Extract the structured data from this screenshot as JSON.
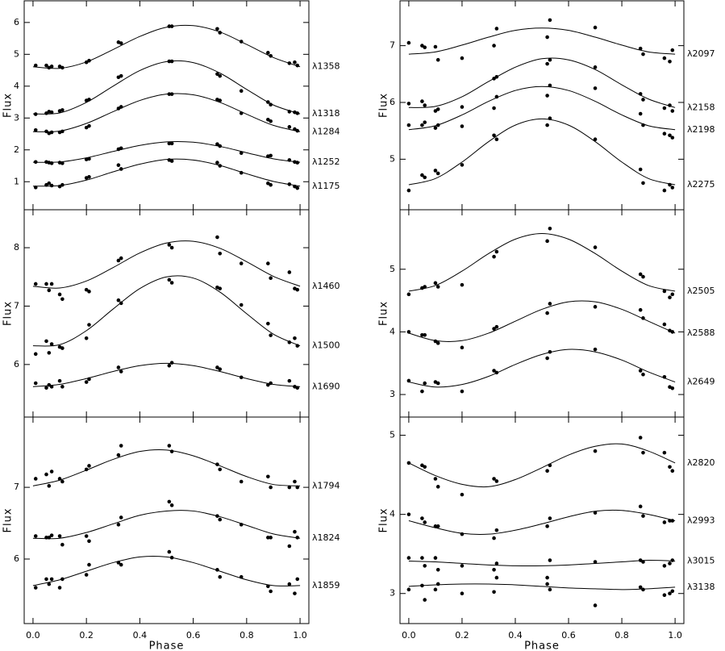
{
  "chart_data": [
    {
      "type": "scatter",
      "ylabel": "Flux",
      "x": [
        0.01,
        0.05,
        0.06,
        0.07,
        0.1,
        0.11,
        0.2,
        0.21,
        0.32,
        0.33,
        0.51,
        0.52,
        0.69,
        0.7,
        0.78,
        0.88,
        0.89,
        0.96,
        0.98,
        0.99
      ],
      "fit_x": [
        0,
        0.1,
        0.2,
        0.3,
        0.4,
        0.5,
        0.6,
        0.7,
        0.8,
        0.9,
        1
      ],
      "xlim": [
        -0.033,
        1.033
      ],
      "ylim": [
        0.12,
        6.68
      ],
      "xticks": [
        0,
        0.2,
        0.4,
        0.6,
        0.8,
        1
      ],
      "yticks": [
        1,
        2,
        3,
        4,
        5,
        6
      ],
      "series": [
        {
          "name": "λ1358",
          "color": "#000000",
          "values": [
            4.65,
            4.65,
            4.58,
            4.62,
            4.62,
            4.58,
            4.75,
            4.8,
            5.38,
            5.35,
            5.88,
            5.88,
            5.8,
            5.68,
            5.4,
            5.05,
            4.95,
            4.72,
            4.75,
            4.65
          ],
          "fit": [
            4.61,
            4.56,
            4.76,
            5.15,
            5.56,
            5.85,
            5.9,
            5.7,
            5.31,
            4.9,
            4.61
          ]
        },
        {
          "name": "λ1318",
          "color": "#000000",
          "values": [
            3.12,
            3.15,
            3.2,
            3.18,
            3.22,
            3.25,
            3.55,
            3.58,
            4.28,
            4.32,
            4.78,
            4.78,
            4.38,
            4.32,
            3.85,
            3.5,
            3.42,
            3.2,
            3.18,
            3.15
          ],
          "fit": [
            3.13,
            3.16,
            3.49,
            4.0,
            4.49,
            4.77,
            4.74,
            4.41,
            3.9,
            3.41,
            3.13
          ]
        },
        {
          "name": "λ1284",
          "color": "#000000",
          "values": [
            2.62,
            2.58,
            2.52,
            2.55,
            2.55,
            2.58,
            2.7,
            2.75,
            3.3,
            3.35,
            3.75,
            3.75,
            3.58,
            3.55,
            3.15,
            2.95,
            2.9,
            2.72,
            2.65,
            2.6
          ],
          "fit": [
            2.57,
            2.59,
            2.83,
            3.2,
            3.55,
            3.75,
            3.73,
            3.49,
            3.12,
            2.77,
            2.57
          ]
        },
        {
          "name": "λ1252",
          "color": "#000000",
          "values": [
            1.62,
            1.62,
            1.6,
            1.58,
            1.6,
            1.58,
            1.7,
            1.72,
            2.02,
            2.05,
            2.2,
            2.2,
            2.18,
            2.12,
            1.9,
            1.8,
            1.82,
            1.68,
            1.62,
            1.6
          ],
          "fit": [
            1.61,
            1.62,
            1.75,
            1.95,
            2.14,
            2.25,
            2.24,
            2.11,
            1.91,
            1.72,
            1.61
          ]
        },
        {
          "name": "λ1175",
          "color": "#000000",
          "values": [
            0.82,
            0.9,
            0.95,
            0.88,
            0.85,
            0.9,
            1.12,
            1.15,
            1.52,
            1.4,
            1.68,
            1.65,
            1.6,
            1.5,
            1.28,
            0.95,
            0.9,
            0.92,
            0.85,
            0.8
          ],
          "fit": [
            0.86,
            0.88,
            1.05,
            1.31,
            1.55,
            1.7,
            1.68,
            1.51,
            1.25,
            1.01,
            0.86
          ]
        }
      ]
    },
    {
      "type": "scatter",
      "ylabel": "Flux",
      "x": [
        0.0,
        0.05,
        0.06,
        0.1,
        0.11,
        0.2,
        0.32,
        0.33,
        0.52,
        0.53,
        0.7,
        0.87,
        0.88,
        0.96,
        0.98,
        0.99
      ],
      "fit_x": [
        0,
        0.1,
        0.2,
        0.3,
        0.4,
        0.5,
        0.6,
        0.7,
        0.8,
        0.9,
        1
      ],
      "xlim": [
        -0.033,
        1.033
      ],
      "ylim": [
        4.11,
        7.79
      ],
      "xticks": [
        0,
        0.2,
        0.4,
        0.6,
        0.8,
        1
      ],
      "yticks": [
        5,
        6,
        7
      ],
      "series": [
        {
          "name": "λ2097",
          "color": "#000000",
          "values": [
            7.05,
            7.0,
            6.97,
            6.98,
            6.75,
            6.78,
            7.0,
            7.3,
            7.15,
            7.45,
            7.32,
            6.95,
            6.85,
            6.78,
            6.72,
            6.92
          ],
          "fit": [
            6.85,
            6.89,
            7.01,
            7.15,
            7.27,
            7.31,
            7.27,
            7.15,
            7.01,
            6.89,
            6.85
          ]
        },
        {
          "name": "λ2158",
          "color": "#000000",
          "values": [
            5.98,
            6.02,
            5.95,
            5.85,
            5.88,
            5.92,
            6.42,
            6.45,
            6.68,
            6.75,
            6.62,
            6.15,
            6.05,
            5.9,
            5.95,
            5.85
          ],
          "fit": [
            5.91,
            5.93,
            6.1,
            6.37,
            6.62,
            6.77,
            6.75,
            6.58,
            6.31,
            6.06,
            5.91
          ]
        },
        {
          "name": "λ2198",
          "color": "#000000",
          "values": [
            5.6,
            5.6,
            5.65,
            5.55,
            5.6,
            5.58,
            5.9,
            6.1,
            6.12,
            6.3,
            6.25,
            5.8,
            5.6,
            5.45,
            5.42,
            5.38
          ],
          "fit": [
            5.52,
            5.59,
            5.78,
            6.02,
            6.21,
            6.28,
            6.21,
            6.02,
            5.78,
            5.59,
            5.52
          ]
        },
        {
          "name": "λ2275",
          "color": "#000000",
          "values": [
            4.45,
            4.72,
            4.68,
            4.8,
            4.75,
            4.9,
            5.42,
            5.35,
            5.6,
            5.72,
            5.35,
            4.82,
            4.58,
            4.45,
            4.55,
            4.5
          ],
          "fit": [
            4.55,
            4.66,
            4.95,
            5.31,
            5.6,
            5.71,
            5.6,
            5.31,
            4.95,
            4.66,
            4.55
          ]
        }
      ]
    },
    {
      "type": "scatter",
      "ylabel": "Flux",
      "x": [
        0.01,
        0.05,
        0.06,
        0.07,
        0.1,
        0.11,
        0.2,
        0.21,
        0.32,
        0.33,
        0.51,
        0.52,
        0.69,
        0.7,
        0.78,
        0.88,
        0.89,
        0.96,
        0.98,
        0.99
      ],
      "fit_x": [
        0,
        0.1,
        0.2,
        0.3,
        0.4,
        0.5,
        0.6,
        0.7,
        0.8,
        0.9,
        1
      ],
      "xlim": [
        -0.033,
        1.033
      ],
      "ylim": [
        5.1,
        8.65
      ],
      "xticks": [
        0,
        0.2,
        0.4,
        0.6,
        0.8,
        1
      ],
      "yticks": [
        6,
        7,
        8
      ],
      "series": [
        {
          "name": "λ1460",
          "color": "#000000",
          "values": [
            7.38,
            7.38,
            7.27,
            7.38,
            7.2,
            7.12,
            7.28,
            7.25,
            7.78,
            7.82,
            8.05,
            8.0,
            8.18,
            7.9,
            7.73,
            7.73,
            7.48,
            7.58,
            7.3,
            7.28
          ],
          "fit": [
            7.34,
            7.31,
            7.43,
            7.66,
            7.91,
            8.08,
            8.11,
            7.99,
            7.76,
            7.51,
            7.34
          ]
        },
        {
          "name": "λ1500",
          "color": "#000000",
          "values": [
            6.18,
            6.4,
            6.2,
            6.35,
            6.3,
            6.28,
            6.45,
            6.68,
            7.1,
            7.05,
            7.45,
            7.4,
            7.32,
            7.3,
            7.02,
            6.7,
            6.5,
            6.38,
            6.45,
            6.32
          ],
          "fit": [
            6.32,
            6.34,
            6.58,
            6.95,
            7.3,
            7.5,
            7.48,
            7.24,
            6.87,
            6.52,
            6.32
          ]
        },
        {
          "name": "λ1690",
          "color": "#000000",
          "values": [
            5.68,
            5.6,
            5.65,
            5.62,
            5.72,
            5.62,
            5.7,
            5.75,
            5.95,
            5.88,
            5.98,
            6.03,
            5.95,
            5.92,
            5.78,
            5.65,
            5.68,
            5.72,
            5.62,
            5.6
          ],
          "fit": [
            5.62,
            5.66,
            5.76,
            5.88,
            5.98,
            6.02,
            5.98,
            5.88,
            5.76,
            5.66,
            5.62
          ]
        }
      ]
    },
    {
      "type": "scatter",
      "ylabel": "Flux",
      "x": [
        0.0,
        0.05,
        0.06,
        0.1,
        0.11,
        0.2,
        0.32,
        0.33,
        0.52,
        0.53,
        0.7,
        0.87,
        0.88,
        0.96,
        0.98,
        0.99
      ],
      "fit_x": [
        0,
        0.1,
        0.2,
        0.3,
        0.4,
        0.5,
        0.6,
        0.7,
        0.8,
        0.9,
        1
      ],
      "xlim": [
        -0.033,
        1.033
      ],
      "ylim": [
        2.64,
        5.95
      ],
      "xticks": [
        0,
        0.2,
        0.4,
        0.6,
        0.8,
        1
      ],
      "yticks": [
        3,
        4,
        5
      ],
      "series": [
        {
          "name": "λ2505",
          "color": "#000000",
          "values": [
            4.6,
            4.7,
            4.72,
            4.78,
            4.72,
            4.75,
            5.2,
            5.28,
            5.45,
            5.65,
            5.35,
            4.92,
            4.88,
            4.65,
            4.55,
            4.6
          ],
          "fit": [
            4.65,
            4.74,
            4.97,
            5.25,
            5.48,
            5.57,
            5.48,
            5.25,
            4.97,
            4.74,
            4.65
          ]
        },
        {
          "name": "λ2588",
          "color": "#000000",
          "values": [
            4.0,
            3.95,
            3.95,
            3.85,
            3.82,
            3.75,
            4.05,
            4.08,
            4.3,
            4.45,
            4.4,
            4.35,
            4.22,
            4.12,
            4.02,
            4.0
          ],
          "fit": [
            3.98,
            3.86,
            3.86,
            3.98,
            4.17,
            4.36,
            4.48,
            4.48,
            4.36,
            4.17,
            3.98
          ]
        },
        {
          "name": "λ2649",
          "color": "#000000",
          "values": [
            3.22,
            3.05,
            3.18,
            3.2,
            3.18,
            3.05,
            3.38,
            3.35,
            3.58,
            3.68,
            3.72,
            3.38,
            3.32,
            3.28,
            3.12,
            3.1
          ],
          "fit": [
            3.2,
            3.12,
            3.16,
            3.29,
            3.48,
            3.64,
            3.72,
            3.68,
            3.55,
            3.36,
            3.2
          ]
        }
      ]
    },
    {
      "type": "scatter",
      "ylabel": "Flux",
      "xlabel": "Phase",
      "x": [
        0.01,
        0.05,
        0.06,
        0.07,
        0.1,
        0.11,
        0.2,
        0.21,
        0.32,
        0.33,
        0.51,
        0.52,
        0.69,
        0.7,
        0.78,
        0.88,
        0.89,
        0.96,
        0.98,
        0.99
      ],
      "fit_x": [
        0,
        0.1,
        0.2,
        0.3,
        0.4,
        0.5,
        0.6,
        0.7,
        0.8,
        0.9,
        1
      ],
      "xlim": [
        -0.033,
        1.033
      ],
      "ylim": [
        5.1,
        7.98
      ],
      "xticks": [
        {
          "value": 0,
          "label": "0.0"
        },
        0.2,
        0.4,
        0.6,
        0.8,
        {
          "value": 1,
          "label": "1.0"
        }
      ],
      "yticks": [
        6,
        7
      ],
      "series": [
        {
          "name": "λ1794",
          "color": "#000000",
          "values": [
            7.12,
            7.18,
            7.02,
            7.22,
            7.12,
            7.08,
            7.25,
            7.3,
            7.45,
            7.58,
            7.58,
            7.5,
            7.32,
            7.25,
            7.08,
            7.15,
            7.0,
            7.0,
            7.08,
            7.0
          ],
          "fit": [
            7.02,
            7.1,
            7.24,
            7.39,
            7.5,
            7.52,
            7.44,
            7.3,
            7.15,
            7.04,
            7.02
          ]
        },
        {
          "name": "λ1824",
          "color": "#000000",
          "values": [
            6.32,
            6.3,
            6.3,
            6.33,
            6.32,
            6.2,
            6.32,
            6.25,
            6.48,
            6.58,
            6.8,
            6.75,
            6.6,
            6.55,
            6.48,
            6.3,
            6.3,
            6.18,
            6.38,
            6.3
          ],
          "fit": [
            6.29,
            6.29,
            6.37,
            6.49,
            6.61,
            6.67,
            6.67,
            6.59,
            6.47,
            6.35,
            6.29
          ]
        },
        {
          "name": "λ1859",
          "color": "#000000",
          "values": [
            5.6,
            5.72,
            5.65,
            5.72,
            5.6,
            5.72,
            5.78,
            5.92,
            5.95,
            5.92,
            6.1,
            6.02,
            5.85,
            5.75,
            5.75,
            5.62,
            5.55,
            5.65,
            5.52,
            5.72
          ],
          "fit": [
            5.63,
            5.71,
            5.83,
            5.95,
            6.03,
            6.03,
            5.95,
            5.83,
            5.71,
            5.63,
            5.63
          ]
        }
      ]
    },
    {
      "type": "scatter",
      "ylabel": "Flux",
      "xlabel": "Phase",
      "x": [
        0.0,
        0.05,
        0.06,
        0.1,
        0.11,
        0.2,
        0.32,
        0.33,
        0.52,
        0.53,
        0.7,
        0.87,
        0.88,
        0.96,
        0.98,
        0.99
      ],
      "fit_x": [
        0,
        0.1,
        0.2,
        0.3,
        0.4,
        0.5,
        0.6,
        0.7,
        0.8,
        0.9,
        1
      ],
      "xlim": [
        -0.033,
        1.033
      ],
      "ylim": [
        2.62,
        5.23
      ],
      "xticks": [
        {
          "value": 0,
          "label": "0.0"
        },
        0.2,
        0.4,
        0.6,
        0.8,
        {
          "value": 1,
          "label": "1.0"
        }
      ],
      "yticks": [
        3,
        4,
        5
      ],
      "series": [
        {
          "name": "λ2820",
          "color": "#000000",
          "values": [
            4.65,
            4.62,
            4.6,
            4.45,
            4.35,
            4.25,
            4.45,
            4.42,
            4.55,
            4.62,
            4.8,
            4.97,
            4.78,
            4.78,
            4.6,
            4.55
          ],
          "fit": [
            4.65,
            4.49,
            4.38,
            4.35,
            4.44,
            4.59,
            4.75,
            4.86,
            4.89,
            4.8,
            4.65
          ]
        },
        {
          "name": "λ2993",
          "color": "#000000",
          "values": [
            4.0,
            3.95,
            3.9,
            3.85,
            3.85,
            3.75,
            3.7,
            3.8,
            3.85,
            3.95,
            4.02,
            4.1,
            3.98,
            3.9,
            3.92,
            3.92
          ],
          "fit": [
            3.92,
            3.83,
            3.76,
            3.75,
            3.8,
            3.88,
            3.97,
            4.04,
            4.05,
            4.0,
            3.92
          ]
        },
        {
          "name": "λ3015",
          "color": "#000000",
          "values": [
            3.45,
            3.45,
            3.35,
            3.45,
            3.3,
            3.35,
            3.3,
            3.38,
            3.2,
            3.42,
            3.4,
            3.42,
            3.4,
            3.35,
            3.38,
            3.42
          ],
          "fit": [
            3.41,
            3.4,
            3.38,
            3.36,
            3.35,
            3.35,
            3.36,
            3.38,
            3.4,
            3.42,
            3.41
          ]
        },
        {
          "name": "λ3138",
          "color": "#000000",
          "values": [
            3.05,
            3.1,
            2.92,
            3.05,
            3.12,
            3.0,
            3.02,
            3.2,
            3.12,
            3.05,
            2.85,
            3.08,
            3.05,
            2.98,
            3.0,
            3.03
          ],
          "fit": [
            3.09,
            3.11,
            3.12,
            3.12,
            3.11,
            3.09,
            3.07,
            3.06,
            3.05,
            3.06,
            3.08
          ]
        }
      ]
    }
  ]
}
